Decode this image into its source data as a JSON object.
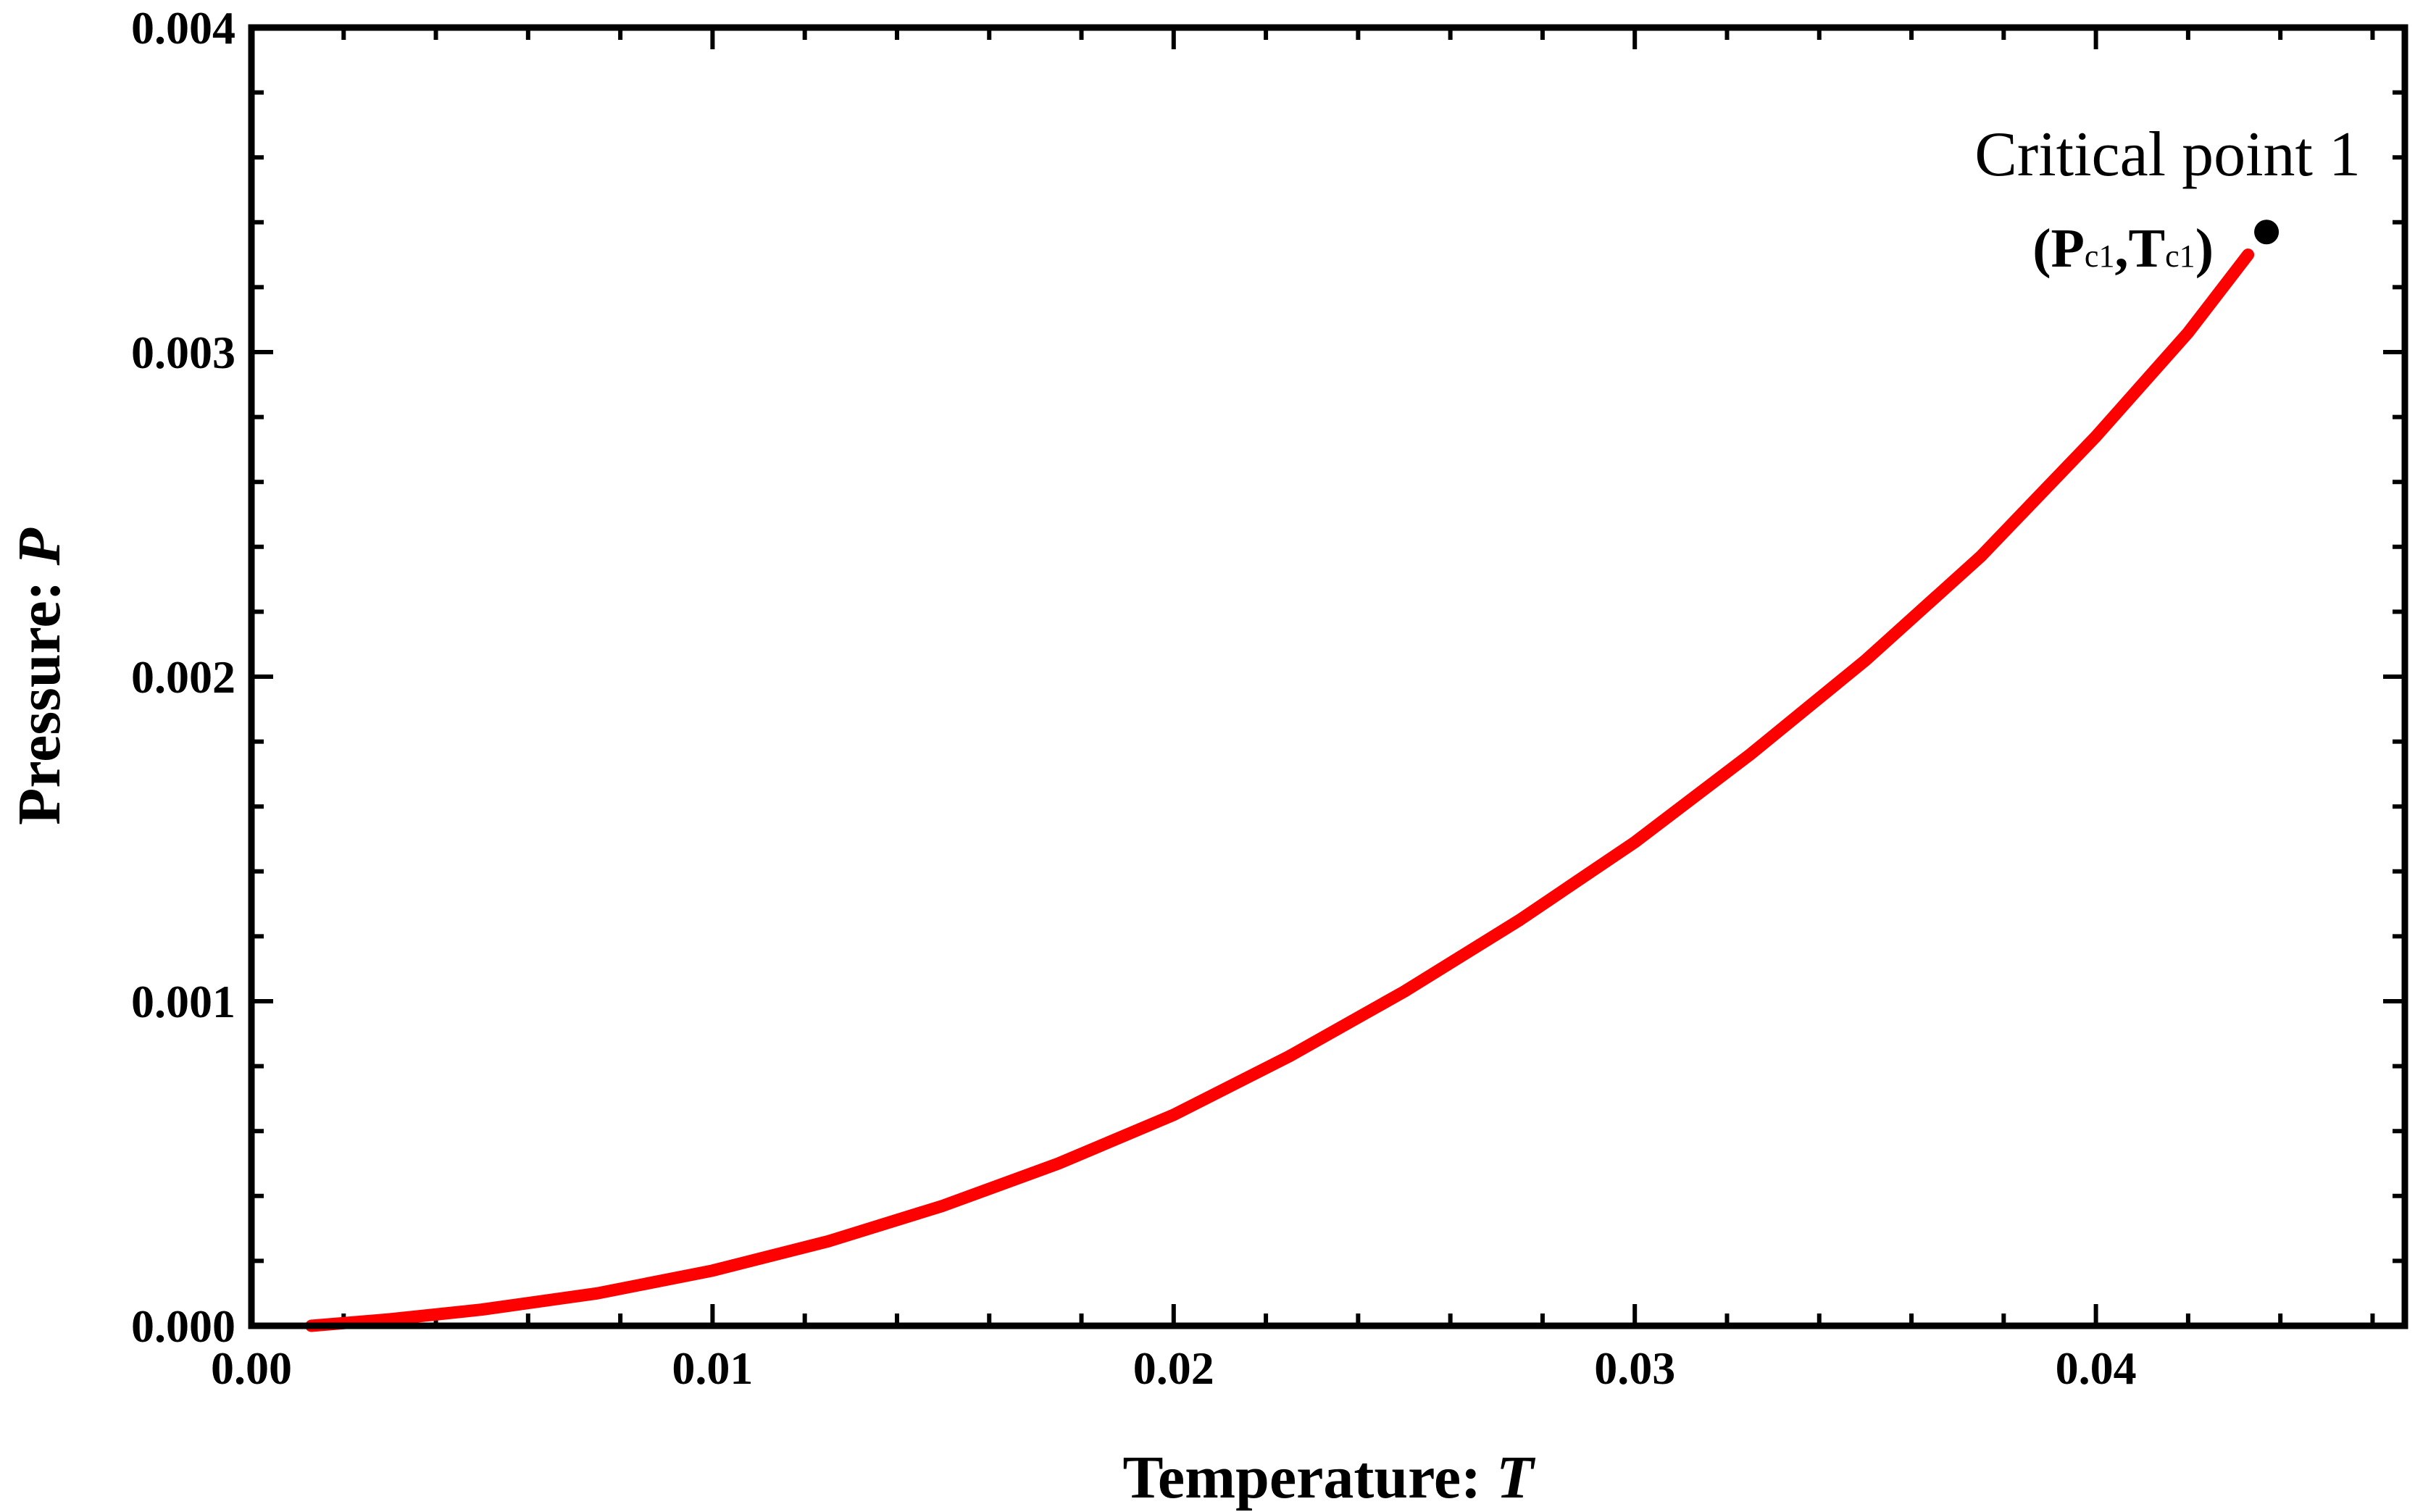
{
  "chart_data": {
    "type": "line",
    "title": "",
    "xlabel_prefix": "Temperature: ",
    "xlabel_symbol": "T",
    "ylabel_prefix": "Pressure: ",
    "ylabel_symbol": "P",
    "xlim": [
      0.0,
      0.0467
    ],
    "ylim": [
      0.0,
      0.004
    ],
    "x_ticks": [
      0.0,
      0.01,
      0.02,
      0.03,
      0.04
    ],
    "x_tick_labels": [
      "0.00",
      "0.01",
      "0.02",
      "0.03",
      "0.04"
    ],
    "y_ticks": [
      0.0,
      0.001,
      0.002,
      0.003,
      0.004
    ],
    "y_tick_labels": [
      "0.000",
      "0.001",
      "0.002",
      "0.003",
      "0.004"
    ],
    "grid": false,
    "series": [
      {
        "color": "#ff0000",
        "x": [
          0.0013,
          0.003,
          0.005,
          0.0075,
          0.01,
          0.0125,
          0.015,
          0.0175,
          0.02,
          0.0225,
          0.025,
          0.0275,
          0.03,
          0.0325,
          0.035,
          0.0375,
          0.04,
          0.042,
          0.0433
        ],
        "y": [
          0.0,
          2e-05,
          5e-05,
          0.0001,
          0.00017,
          0.00026,
          0.00037,
          0.0005,
          0.00065,
          0.00083,
          0.00103,
          0.00125,
          0.00149,
          0.00176,
          0.00205,
          0.00237,
          0.00274,
          0.00306,
          0.0033
        ]
      }
    ],
    "annotation": {
      "point": {
        "x": 0.0437,
        "y": 0.00337,
        "color": "#000000"
      },
      "line1": "Critical point 1",
      "open": "(P",
      "sub1": "c1",
      "mid": ",T",
      "sub2": "c1",
      "close": ")"
    }
  }
}
